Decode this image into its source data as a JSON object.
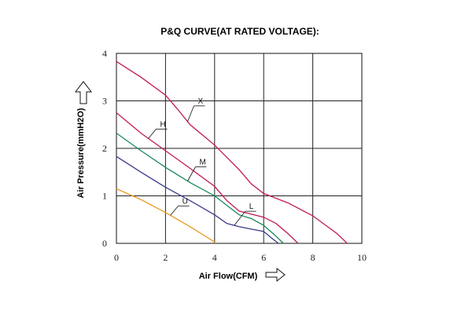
{
  "chart_data": {
    "type": "line",
    "title": "P&Q CURVE(AT RATED VOLTAGE):",
    "xlabel": "Air Flow(CFM)",
    "ylabel": "Air Pressure(mmH2O)",
    "xlim": [
      0,
      10
    ],
    "ylim": [
      0,
      4
    ],
    "xticks": [
      0,
      2,
      4,
      6,
      8,
      10
    ],
    "yticks": [
      0,
      1,
      2,
      3,
      4
    ],
    "grid": true,
    "legend": "none",
    "axis_arrows": true,
    "series": [
      {
        "name": "X",
        "color": "#c2185b",
        "points": [
          [
            0,
            3.83
          ],
          [
            1,
            3.5
          ],
          [
            2,
            3.12
          ],
          [
            2.5,
            2.82
          ],
          [
            3,
            2.5
          ],
          [
            4,
            2.07
          ],
          [
            5,
            1.55
          ],
          [
            5.5,
            1.25
          ],
          [
            6,
            1.05
          ],
          [
            7,
            0.85
          ],
          [
            8,
            0.58
          ],
          [
            9,
            0.2
          ],
          [
            9.4,
            0
          ]
        ]
      },
      {
        "name": "H",
        "color": "#c2185b",
        "points": [
          [
            0,
            2.75
          ],
          [
            1,
            2.32
          ],
          [
            2,
            1.95
          ],
          [
            3,
            1.58
          ],
          [
            4,
            1.2
          ],
          [
            4.5,
            0.9
          ],
          [
            5,
            0.68
          ],
          [
            6,
            0.55
          ],
          [
            6.5,
            0.42
          ],
          [
            7,
            0.2
          ],
          [
            7.4,
            0
          ]
        ]
      },
      {
        "name": "M",
        "color": "#1b8a5a",
        "points": [
          [
            0,
            2.32
          ],
          [
            1,
            1.95
          ],
          [
            2,
            1.6
          ],
          [
            3,
            1.28
          ],
          [
            4,
            1.0
          ],
          [
            4.5,
            0.8
          ],
          [
            5,
            0.6
          ],
          [
            5.5,
            0.52
          ],
          [
            6,
            0.38
          ],
          [
            6.5,
            0.15
          ],
          [
            6.8,
            0
          ]
        ]
      },
      {
        "name": "L",
        "color": "#3a3a8c",
        "points": [
          [
            0,
            1.83
          ],
          [
            1,
            1.5
          ],
          [
            2,
            1.18
          ],
          [
            3,
            0.9
          ],
          [
            4,
            0.6
          ],
          [
            4.5,
            0.42
          ],
          [
            5,
            0.35
          ],
          [
            5.5,
            0.3
          ],
          [
            6,
            0.25
          ],
          [
            6.3,
            0.12
          ],
          [
            6.6,
            0
          ]
        ]
      },
      {
        "name": "U",
        "color": "#e69a1f",
        "points": [
          [
            0,
            1.15
          ],
          [
            1,
            0.92
          ],
          [
            2,
            0.65
          ],
          [
            3,
            0.35
          ],
          [
            4,
            0.03
          ],
          [
            4.05,
            0
          ]
        ]
      }
    ]
  }
}
